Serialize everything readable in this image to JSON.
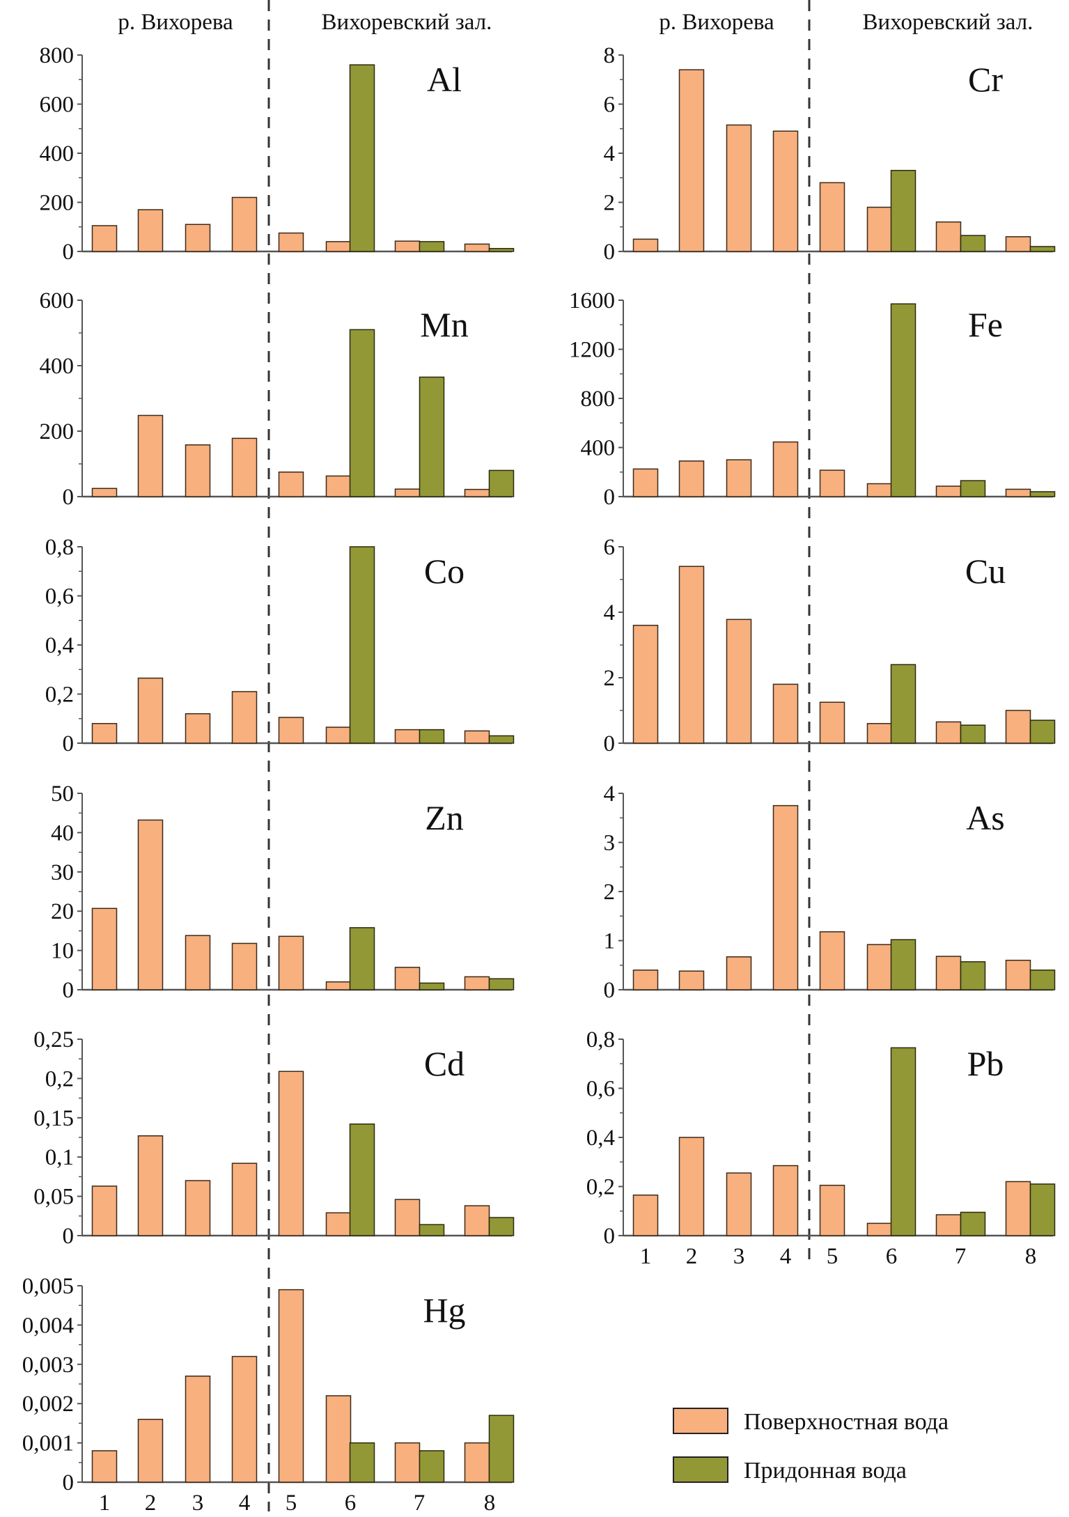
{
  "chart_data": {
    "type": "bar",
    "layout": "grid of small-multiple bar charts, left column 6 panels, right column 5 panels",
    "categories": [
      "1",
      "2",
      "3",
      "4",
      "5",
      "6",
      "7",
      "8"
    ],
    "group_headers": [
      "р. Вихорева",
      "Вихоревский зал."
    ],
    "group_split": "between stations 4 and 5 (dashed line)",
    "legend": {
      "placement": "bottom-right",
      "entries": [
        "Поверхностная вода",
        "Придонная вода"
      ]
    },
    "colors": {
      "surface": "#F8B07F",
      "bottom": "#939837",
      "outline": "#3a2a1a"
    },
    "grid": false,
    "panels": [
      {
        "element": "Al",
        "column": "left",
        "ylim": [
          0,
          800
        ],
        "ticks": [
          "0",
          "200",
          "400",
          "600",
          "800"
        ],
        "series": [
          {
            "name": "Поверхностная вода",
            "values": [
              105,
              170,
              110,
              220,
              75,
              40,
              42,
              30
            ]
          },
          {
            "name": "Придонная вода",
            "values": [
              null,
              null,
              null,
              null,
              null,
              760,
              40,
              12
            ]
          }
        ]
      },
      {
        "element": "Mn",
        "column": "left",
        "ylim": [
          0,
          600
        ],
        "ticks": [
          "0",
          "200",
          "400",
          "600"
        ],
        "series": [
          {
            "name": "Поверхностная вода",
            "values": [
              25,
              248,
              158,
              178,
              75,
              63,
              23,
              22
            ]
          },
          {
            "name": "Придонная вода",
            "values": [
              null,
              null,
              null,
              null,
              null,
              510,
              365,
              80
            ]
          }
        ]
      },
      {
        "element": "Co",
        "column": "left",
        "ylim": [
          0,
          0.8
        ],
        "ticks": [
          "0",
          "0,2",
          "0,4",
          "0,6",
          "0,8"
        ],
        "series": [
          {
            "name": "Поверхностная вода",
            "values": [
              0.08,
              0.265,
              0.12,
              0.21,
              0.105,
              0.065,
              0.055,
              0.05
            ]
          },
          {
            "name": "Придонная вода",
            "values": [
              null,
              null,
              null,
              null,
              null,
              0.8,
              0.055,
              0.03
            ]
          }
        ]
      },
      {
        "element": "Zn",
        "column": "left",
        "ylim": [
          0,
          50
        ],
        "ticks": [
          "0",
          "10",
          "20",
          "30",
          "40",
          "50"
        ],
        "series": [
          {
            "name": "Поверхностная вода",
            "values": [
              20.7,
              43.2,
              13.8,
              11.8,
              13.6,
              2,
              5.7,
              3.3
            ]
          },
          {
            "name": "Придонная вода",
            "values": [
              null,
              null,
              null,
              null,
              null,
              15.8,
              1.7,
              2.8
            ]
          }
        ]
      },
      {
        "element": "Cd",
        "column": "left",
        "ylim": [
          0,
          0.25
        ],
        "ticks": [
          "0",
          "0,05",
          "0,1",
          "0,15",
          "0,2",
          "0,25"
        ],
        "series": [
          {
            "name": "Поверхностная вода",
            "values": [
              0.063,
              0.127,
              0.07,
              0.092,
              0.209,
              0.029,
              0.046,
              0.038
            ]
          },
          {
            "name": "Придонная вода",
            "values": [
              null,
              null,
              null,
              null,
              null,
              0.142,
              0.014,
              0.023
            ]
          }
        ]
      },
      {
        "element": "Hg",
        "column": "left",
        "ylim": [
          0,
          0.005
        ],
        "ticks": [
          "0",
          "0,001",
          "0,002",
          "0,003",
          "0,004",
          "0,005"
        ],
        "series": [
          {
            "name": "Поверхностная вода",
            "values": [
              0.0008,
              0.0016,
              0.0027,
              0.0032,
              0.0049,
              0.0022,
              0.001,
              0.001
            ]
          },
          {
            "name": "Придонная вода",
            "values": [
              null,
              null,
              null,
              null,
              null,
              0.001,
              0.0008,
              0.0017
            ]
          }
        ]
      },
      {
        "element": "Cr",
        "column": "right",
        "ylim": [
          0,
          8
        ],
        "ticks": [
          "0",
          "2",
          "4",
          "6",
          "8"
        ],
        "series": [
          {
            "name": "Поверхностная вода",
            "values": [
              0.5,
              7.4,
              5.15,
              4.9,
              2.8,
              1.8,
              1.2,
              0.6
            ]
          },
          {
            "name": "Придонная вода",
            "values": [
              null,
              null,
              null,
              null,
              null,
              3.3,
              0.65,
              0.2
            ]
          }
        ]
      },
      {
        "element": "Fe",
        "column": "right",
        "ylim": [
          0,
          1600
        ],
        "ticks": [
          "0",
          "400",
          "800",
          "1200",
          "1600"
        ],
        "series": [
          {
            "name": "Поверхностная вода",
            "values": [
              225,
              290,
              300,
              445,
              215,
              105,
              85,
              60
            ]
          },
          {
            "name": "Придонная вода",
            "values": [
              null,
              null,
              null,
              null,
              null,
              1570,
              130,
              40
            ]
          }
        ]
      },
      {
        "element": "Cu",
        "column": "right",
        "ylim": [
          0,
          6
        ],
        "ticks": [
          "0",
          "2",
          "4",
          "6"
        ],
        "series": [
          {
            "name": "Поверхностная вода",
            "values": [
              3.6,
              5.4,
              3.78,
              1.8,
              1.25,
              0.6,
              0.65,
              1.0
            ]
          },
          {
            "name": "Придонная вода",
            "values": [
              null,
              null,
              null,
              null,
              null,
              2.4,
              0.55,
              0.7
            ]
          }
        ]
      },
      {
        "element": "As",
        "column": "right",
        "ylim": [
          0,
          4
        ],
        "ticks": [
          "0",
          "1",
          "2",
          "3",
          "4"
        ],
        "series": [
          {
            "name": "Поверхностная вода",
            "values": [
              0.4,
              0.38,
              0.67,
              3.75,
              1.18,
              0.92,
              0.68,
              0.6
            ]
          },
          {
            "name": "Придонная вода",
            "values": [
              null,
              null,
              null,
              null,
              null,
              1.02,
              0.57,
              0.4
            ]
          }
        ]
      },
      {
        "element": "Pb",
        "column": "right",
        "ylim": [
          0,
          0.8
        ],
        "ticks": [
          "0",
          "0,2",
          "0,4",
          "0,6",
          "0,8"
        ],
        "series": [
          {
            "name": "Поверхностная вода",
            "values": [
              0.165,
              0.4,
              0.255,
              0.285,
              0.205,
              0.05,
              0.085,
              0.22
            ]
          },
          {
            "name": "Придонная вода",
            "values": [
              null,
              null,
              null,
              null,
              null,
              0.765,
              0.095,
              0.21
            ]
          }
        ]
      }
    ]
  }
}
